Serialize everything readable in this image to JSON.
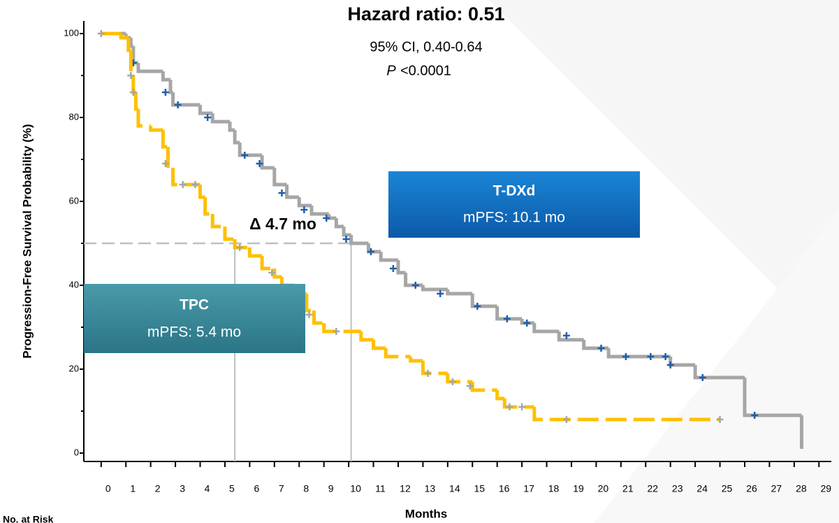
{
  "chart_data": {
    "type": "km",
    "title": "Hazard ratio: 0.51",
    "ci_text": "95% CI, 0.40-0.64",
    "p_label": "P",
    "p_value": "<0.0001",
    "x_label": "Months",
    "y_label": "Progression-Free Survival Probability (%)",
    "risk_label": "No. at Risk",
    "delta_label": "Δ 4.7 mo",
    "xlim": [
      -0.7,
      29.5
    ],
    "ylim": [
      -2,
      103
    ],
    "xticks": [
      0,
      1,
      2,
      3,
      4,
      5,
      6,
      7,
      8,
      9,
      10,
      11,
      12,
      13,
      14,
      15,
      16,
      17,
      18,
      19,
      20,
      21,
      22,
      23,
      24,
      25,
      26,
      27,
      28,
      29
    ],
    "yticks": [
      0,
      20,
      40,
      60,
      80,
      100
    ],
    "yminor_ticks": [
      10,
      30,
      50,
      70,
      90
    ],
    "median_y": 50,
    "median_x": [
      5.4,
      10.1
    ],
    "series": [
      {
        "name": "T-DXd",
        "summary": "mPFS: 10.1 mo",
        "color": "#a6a6a6",
        "censor_color": "#1f5fa8",
        "dashed": false,
        "x": [
          0,
          1,
          1.2,
          1.3,
          1.5,
          2.5,
          2.8,
          2.9,
          4,
          4.5,
          5.2,
          5.4,
          5.6,
          6.5,
          7,
          7.5,
          8,
          8.5,
          9.2,
          9.5,
          9.8,
          10.1,
          10.8,
          11.3,
          12,
          12.3,
          13,
          14,
          15,
          16,
          17,
          17.5,
          18.5,
          19.5,
          20.5,
          23,
          24,
          26,
          28.3
        ],
        "y": [
          100,
          99,
          97,
          93,
          91,
          89,
          86,
          83,
          81,
          79,
          77,
          74,
          71,
          68,
          64,
          61,
          59,
          57,
          56,
          54,
          52,
          50,
          48,
          46,
          43,
          40,
          39,
          38,
          35,
          32,
          31,
          29,
          27,
          25,
          23,
          21,
          18,
          9,
          1
        ],
        "censor_x": [
          1.3,
          2.6,
          3.1,
          4.3,
          5.8,
          6.4,
          7.3,
          8.2,
          9.1,
          9.9,
          10.9,
          11.8,
          12.7,
          13.7,
          15.2,
          16.4,
          17.2,
          18.8,
          20.2,
          21.2,
          22.2,
          22.8,
          23,
          24.3,
          26.4
        ],
        "censor_y": [
          93,
          86,
          83,
          80,
          71,
          69,
          62,
          58,
          56,
          51,
          48,
          44,
          40,
          38,
          35,
          32,
          31,
          28,
          25,
          23,
          23,
          23,
          21,
          18,
          9
        ]
      },
      {
        "name": "TPC",
        "summary": "mPFS: 5.4 mo",
        "color": "#ffc000",
        "censor_color": "#a6a6a6",
        "dashed": true,
        "x": [
          0,
          0.8,
          1.1,
          1.2,
          1.3,
          1.4,
          1.5,
          2,
          2.5,
          2.7,
          2.9,
          4,
          4.2,
          4.5,
          5,
          5.4,
          6,
          6.5,
          7,
          7.3,
          8,
          8.3,
          8.6,
          9,
          10.5,
          11,
          11.5,
          12.5,
          13,
          14,
          15,
          16,
          16.3,
          17.5,
          25
        ],
        "y": [
          100,
          99,
          96,
          90,
          86,
          82,
          78,
          77,
          73,
          68,
          64,
          61,
          57,
          54,
          51,
          49,
          47,
          44,
          42,
          40,
          38,
          34,
          31,
          29,
          27,
          25,
          23,
          22,
          19,
          17,
          15,
          13,
          11,
          8,
          8
        ],
        "censor_x": [
          0,
          1.2,
          1.3,
          2.6,
          3.3,
          3.8,
          5.6,
          6.9,
          8.4,
          9.5,
          13.2,
          14.2,
          14.9,
          16.5,
          17,
          18.8,
          25
        ],
        "censor_y": [
          100,
          90,
          86,
          69,
          64,
          64,
          49,
          43,
          33,
          29,
          19,
          17,
          16,
          11,
          11,
          8,
          8
        ]
      }
    ]
  }
}
